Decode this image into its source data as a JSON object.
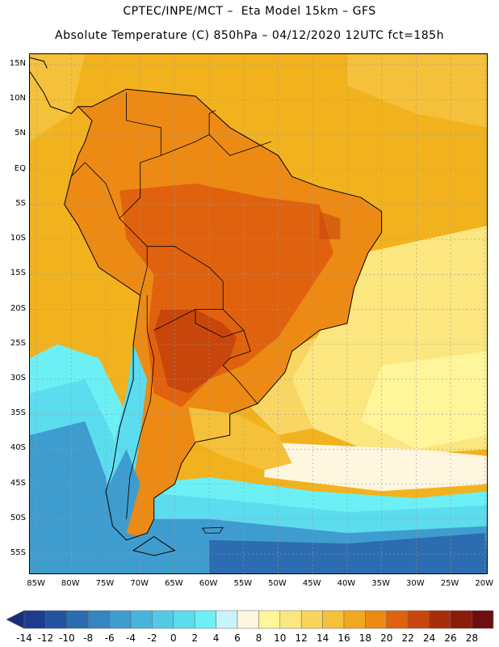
{
  "title": {
    "line1": "CPTEC/INPE/MCT –  Eta Model 15km – GFS",
    "line2": "Absolute Temperature (C) 850hPa – 04/12/2020 12UTC fct=185h"
  },
  "map": {
    "lat_labels": [
      "15N",
      "10N",
      "5N",
      "EQ",
      "5S",
      "10S",
      "15S",
      "20S",
      "25S",
      "30S",
      "35S",
      "40S",
      "45S",
      "50S",
      "55S"
    ],
    "lat_values": [
      15,
      10,
      5,
      0,
      -5,
      -10,
      -15,
      -20,
      -25,
      -30,
      -35,
      -40,
      -45,
      -50,
      -55
    ],
    "lon_labels": [
      "85W",
      "80W",
      "75W",
      "70W",
      "65W",
      "60W",
      "55W",
      "50W",
      "45W",
      "40W",
      "35W",
      "30W",
      "25W",
      "20W"
    ],
    "lon_values": [
      -85,
      -80,
      -75,
      -70,
      -65,
      -60,
      -55,
      -50,
      -45,
      -40,
      -35,
      -30,
      -25,
      -20
    ],
    "lat_range": [
      -58,
      16.5
    ],
    "lon_range": [
      -86,
      -19.5
    ],
    "grid": true
  },
  "colorbar": {
    "labels": [
      "-14",
      "-12",
      "-10",
      "-8",
      "-6",
      "-4",
      "-2",
      "0",
      "2",
      "4",
      "6",
      "8",
      "10",
      "12",
      "14",
      "16",
      "18",
      "20",
      "22",
      "24",
      "26",
      "28"
    ],
    "colors": [
      "#1f3b8f",
      "#22539e",
      "#2c6cb0",
      "#3585c0",
      "#3f9ccf",
      "#49b3dc",
      "#55c8e6",
      "#5cdcef",
      "#6df0f5",
      "#c8f4fb",
      "#fff6e0",
      "#fff59a",
      "#fce680",
      "#f9d45a",
      "#f5c03a",
      "#f0a81e",
      "#ec8a14",
      "#e0620e",
      "#c8460c",
      "#a82e0a",
      "#8a1c0a",
      "#6e0e0e"
    ],
    "extend_min_color": "#1a2f7a",
    "extend_max_color": "#6a0a14"
  },
  "fields": {
    "ocean_warm": "#f2b21e",
    "ocean_mid": "#f5c03a",
    "ocean_cool": "#fce680",
    "continent_base": "#ec8a14",
    "continent_hot": "#e0620e",
    "core_hot": "#c8460c",
    "south_pale": "#fff59a",
    "south_cream": "#fff6e0",
    "cold_cyan": "#6df0f5",
    "cold_cyan2": "#5cdcef",
    "cold_blue": "#3f9ccf",
    "cold_deep": "#2c6cb0",
    "coast": "#000000"
  }
}
